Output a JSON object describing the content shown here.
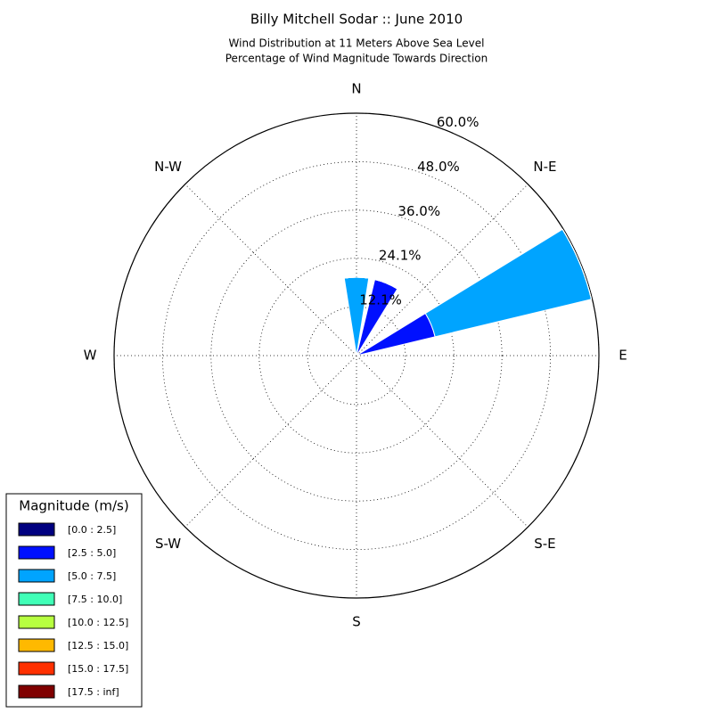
{
  "chart_data": {
    "type": "windrose",
    "title": "Billy Mitchell Sodar :: June 2010",
    "subtitle": [
      "Wind Distribution at 11 Meters Above Sea Level",
      "Percentage of Wind Magnitude Towards Direction"
    ],
    "x": [
      0,
      22.5,
      45,
      67.5,
      90,
      112.5,
      135,
      157.5,
      180,
      202.5,
      225,
      247.5,
      270,
      292.5,
      315,
      337.5
    ],
    "xticks": [
      {
        "value": 0,
        "label": "N"
      },
      {
        "value": 45,
        "label": "N-E"
      },
      {
        "value": 90,
        "label": "E"
      },
      {
        "value": 135,
        "label": "S-E"
      },
      {
        "value": 180,
        "label": "S"
      },
      {
        "value": 225,
        "label": "S-W"
      },
      {
        "value": 270,
        "label": "W"
      },
      {
        "value": 315,
        "label": "N-W"
      }
    ],
    "ylim": [
      0,
      60
    ],
    "yticks": [
      {
        "value": 12.1,
        "label": "12.1%"
      },
      {
        "value": 24.1,
        "label": "24.1%"
      },
      {
        "value": 36.0,
        "label": "36.0%"
      },
      {
        "value": 48.0,
        "label": "48.0%"
      },
      {
        "value": 60.0,
        "label": "60.0%"
      }
    ],
    "grid": true,
    "legend_title": "Magnitude (m/s)",
    "legend_position": "lower-left",
    "series": [
      {
        "name": "[0.0 : 2.5]",
        "color": "#000080",
        "values": [
          0,
          0,
          0,
          0,
          0,
          0,
          0,
          0,
          0,
          0,
          0,
          0,
          0,
          0,
          0,
          0
        ]
      },
      {
        "name": "[2.5 : 5.0]",
        "color": "#0010ff",
        "values": [
          0,
          19.4,
          0,
          20,
          0,
          0,
          0,
          0,
          0,
          0,
          0,
          0,
          0,
          0,
          0,
          0
        ]
      },
      {
        "name": "[5.0 : 7.5]",
        "color": "#00a4ff",
        "values": [
          19.4,
          0,
          0,
          39.8,
          0,
          0,
          0,
          0,
          0,
          0,
          0,
          0,
          0,
          0,
          0,
          0
        ]
      },
      {
        "name": "[7.5 : 10.0]",
        "color": "#40ffb7",
        "values": [
          0,
          0,
          0,
          0,
          0,
          0,
          0,
          0,
          0,
          0,
          0,
          0,
          0,
          0,
          0,
          0
        ]
      },
      {
        "name": "[10.0 : 12.5]",
        "color": "#b7ff40",
        "values": [
          0,
          0,
          0,
          0,
          0,
          0,
          0,
          0,
          0,
          0,
          0,
          0,
          0,
          0,
          0,
          0
        ]
      },
      {
        "name": "[12.5 : 15.0]",
        "color": "#ffb900",
        "values": [
          0,
          0,
          0,
          0,
          0,
          0,
          0,
          0,
          0,
          0,
          0,
          0,
          0,
          0,
          0,
          0
        ]
      },
      {
        "name": "[15.0 : 17.5]",
        "color": "#ff3000",
        "values": [
          0,
          0,
          0,
          0,
          0,
          0,
          0,
          0,
          0,
          0,
          0,
          0,
          0,
          0,
          0,
          0
        ]
      },
      {
        "name": "[17.5 : inf]",
        "color": "#800000",
        "values": [
          0,
          0,
          0,
          0,
          0,
          0,
          0,
          0,
          0,
          0,
          0,
          0,
          0,
          0,
          0,
          0
        ]
      }
    ]
  }
}
